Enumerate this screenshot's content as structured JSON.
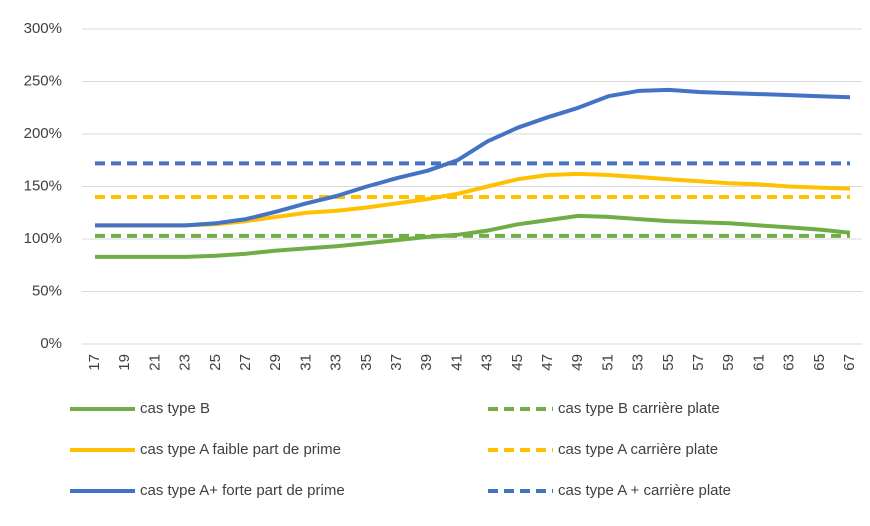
{
  "chart_data": {
    "type": "line",
    "x": [
      17,
      19,
      21,
      23,
      25,
      27,
      29,
      31,
      33,
      35,
      37,
      39,
      41,
      43,
      45,
      47,
      49,
      51,
      53,
      55,
      57,
      59,
      61,
      63,
      65,
      67
    ],
    "xlim": [
      17,
      67
    ],
    "xticks": [
      17,
      19,
      21,
      23,
      25,
      27,
      29,
      31,
      33,
      35,
      37,
      39,
      41,
      43,
      45,
      47,
      49,
      51,
      53,
      55,
      57,
      59,
      61,
      63,
      65,
      67
    ],
    "ylim": [
      0,
      300
    ],
    "yticks": [
      {
        "value": 0,
        "label": "0%"
      },
      {
        "value": 50,
        "label": "50%"
      },
      {
        "value": 100,
        "label": "100%"
      },
      {
        "value": 150,
        "label": "150%"
      },
      {
        "value": 200,
        "label": "200%"
      },
      {
        "value": 250,
        "label": "250%"
      },
      {
        "value": 300,
        "label": "300%"
      }
    ],
    "grid": true,
    "series": [
      {
        "name": "cas type B",
        "color": "#70ad47",
        "dash": false,
        "values": [
          83,
          83,
          83,
          83,
          84,
          86,
          89,
          91,
          93,
          96,
          99,
          102,
          104,
          108,
          114,
          118,
          122,
          121,
          119,
          117,
          116,
          115,
          113,
          111,
          109,
          106
        ]
      },
      {
        "name": "cas type B carrière plate",
        "color": "#70ad47",
        "dash": true,
        "values": [
          103,
          103,
          103,
          103,
          103,
          103,
          103,
          103,
          103,
          103,
          103,
          103,
          103,
          103,
          103,
          103,
          103,
          103,
          103,
          103,
          103,
          103,
          103,
          103,
          103,
          103
        ]
      },
      {
        "name": "cas type A faible part de prime",
        "color": "#ffc000",
        "dash": false,
        "values": [
          113,
          113,
          113,
          113,
          114,
          117,
          121,
          125,
          127,
          130,
          134,
          138,
          143,
          150,
          157,
          161,
          162,
          161,
          159,
          157,
          155,
          153,
          152,
          150,
          149,
          148
        ]
      },
      {
        "name": "cas type A carrière plate",
        "color": "#ffc000",
        "dash": true,
        "values": [
          140,
          140,
          140,
          140,
          140,
          140,
          140,
          140,
          140,
          140,
          140,
          140,
          140,
          140,
          140,
          140,
          140,
          140,
          140,
          140,
          140,
          140,
          140,
          140,
          140,
          140
        ]
      },
      {
        "name": "cas type A+ forte part de prime",
        "color": "#4472c4",
        "dash": false,
        "values": [
          113,
          113,
          113,
          113,
          115,
          119,
          126,
          134,
          141,
          150,
          158,
          165,
          175,
          193,
          206,
          216,
          225,
          236,
          241,
          242,
          240,
          239,
          238,
          237,
          236,
          235
        ]
      },
      {
        "name": "cas type A + carrière plate",
        "color": "#4472c4",
        "dash": true,
        "values": [
          172,
          172,
          172,
          172,
          172,
          172,
          172,
          172,
          172,
          172,
          172,
          172,
          172,
          172,
          172,
          172,
          172,
          172,
          172,
          172,
          172,
          172,
          172,
          172,
          172,
          172
        ]
      }
    ]
  }
}
